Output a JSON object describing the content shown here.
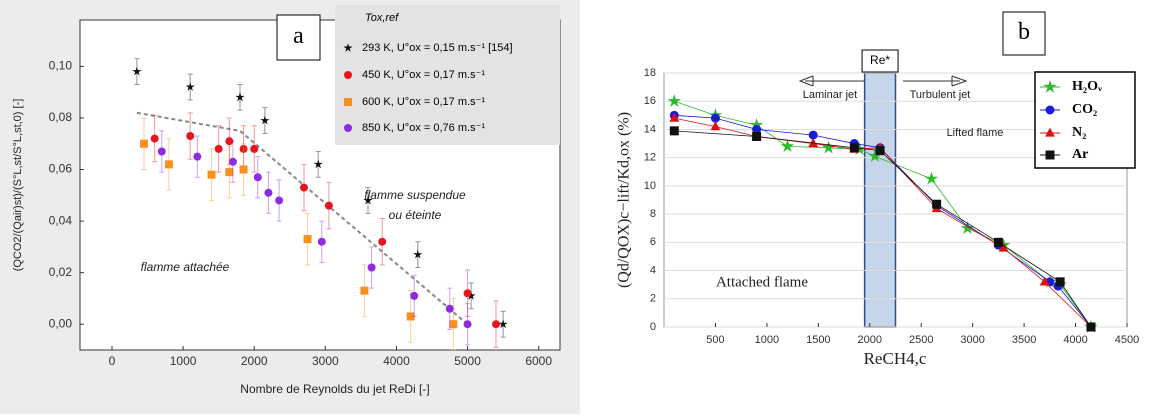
{
  "chart_data": [
    {
      "type": "scatter",
      "panel_label": "a",
      "y_label": "(QCO2/(Qair)st)/(S°L,st/S°L,st,0) [-]",
      "x_label": "Nombre de Reynolds du jet ReDi [-]",
      "legend_title": "Tox,ref",
      "annotations": [
        "flamme suspendue",
        "ou éteinte",
        "flamme attachée"
      ],
      "xlim": [
        -450,
        6300
      ],
      "ylim": [
        -0.01,
        0.118
      ],
      "xticks": [
        0,
        1000,
        2000,
        3000,
        4000,
        5000,
        6000
      ],
      "yticks": [
        {
          "value": 0,
          "label": "0,00"
        },
        {
          "value": 0.02,
          "label": "0,02"
        },
        {
          "value": 0.04,
          "label": "0,04"
        },
        {
          "value": 0.06,
          "label": "0,06"
        },
        {
          "value": 0.08,
          "label": "0,08"
        },
        {
          "value": 0.1,
          "label": "0,10"
        }
      ],
      "grid": false,
      "fit": {
        "x": [
          350,
          1800,
          5000
        ],
        "values": [
          0.082,
          0.075,
          0
        ],
        "color": "#888888"
      },
      "series": [
        {
          "name": "293 K, U°ox = 0,15 m.s⁻¹ [154]",
          "color": "#111111",
          "marker": "star",
          "x": [
            350,
            1100,
            1800,
            2150,
            2900,
            3600,
            4300,
            5050,
            5500
          ],
          "values": [
            0.098,
            0.092,
            0.088,
            0.079,
            0.062,
            0.048,
            0.027,
            0.011,
            0.0
          ],
          "error": 0.005
        },
        {
          "name": "450 K, U°ox = 0,17 m.s⁻¹",
          "color": "#e8141e",
          "marker": "circle",
          "x": [
            600,
            1100,
            1500,
            1650,
            1850,
            2000,
            2700,
            3050,
            3800,
            5000,
            5400
          ],
          "values": [
            0.072,
            0.073,
            0.068,
            0.071,
            0.068,
            0.068,
            0.053,
            0.046,
            0.032,
            0.012,
            0.0
          ],
          "error": 0.009
        },
        {
          "name": "600 K, U°ox = 0,17 m.s⁻¹",
          "color": "#f7901e",
          "marker": "square",
          "x": [
            450,
            800,
            1400,
            1650,
            1850,
            2750,
            3550,
            4200,
            4800
          ],
          "values": [
            0.07,
            0.062,
            0.058,
            0.059,
            0.06,
            0.033,
            0.013,
            0.003,
            0.0
          ],
          "error": 0.01
        },
        {
          "name": "850 K, U°ox = 0,76 m.s⁻¹",
          "color": "#8c2be2",
          "marker": "circle",
          "x": [
            700,
            1200,
            1700,
            2050,
            2200,
            2350,
            2950,
            3650,
            4250,
            4750,
            5000
          ],
          "values": [
            0.067,
            0.065,
            0.063,
            0.057,
            0.051,
            0.048,
            0.032,
            0.022,
            0.011,
            0.006,
            0.0
          ],
          "error": 0.008
        }
      ]
    },
    {
      "type": "line",
      "panel_label": "b",
      "y_label": "(Qd/QOX)c−lift/Kd,ox (%)",
      "x_label": "ReCH4,c",
      "region_label": "Re*",
      "band": [
        1950,
        2250
      ],
      "annotations": [
        "Laminar  jet",
        "Turbulent jet",
        "Lifted flame",
        "Attached flame"
      ],
      "xlim": [
        0,
        4500
      ],
      "ylim": [
        0,
        18
      ],
      "xticks": [
        500,
        1000,
        1500,
        2000,
        2500,
        3000,
        3500,
        4000,
        4500
      ],
      "yticks": [
        0,
        2,
        4,
        6,
        8,
        10,
        12,
        14,
        16,
        18
      ],
      "grid": true,
      "series": [
        {
          "name": "H₂Oᵥ",
          "color": "#2eb82e",
          "marker": "star",
          "x": [
            100,
            500,
            900,
            1200,
            1600,
            1900,
            2050,
            2600,
            2950,
            3300,
            3750,
            3850,
            4150
          ],
          "values": [
            16.0,
            15.0,
            14.3,
            12.8,
            12.7,
            12.6,
            12.1,
            10.5,
            7.0,
            5.8,
            3.2,
            3.0,
            0.0
          ]
        },
        {
          "name": "CO₂",
          "color": "#1a1adb",
          "marker": "circle",
          "x": [
            100,
            500,
            900,
            1450,
            1850,
            2100,
            2650,
            3250,
            3750,
            3830,
            4150
          ],
          "values": [
            15.0,
            14.8,
            14.0,
            13.6,
            13.0,
            12.7,
            8.6,
            5.8,
            3.2,
            2.9,
            0.0
          ]
        },
        {
          "name": "N₂",
          "color": "#e01010",
          "marker": "triangle",
          "x": [
            100,
            500,
            900,
            1450,
            1850,
            2100,
            2650,
            3300,
            3700,
            4150
          ],
          "values": [
            14.8,
            14.2,
            13.5,
            13.0,
            12.6,
            12.7,
            8.4,
            5.6,
            3.2,
            0.0
          ]
        },
        {
          "name": "Ar",
          "color": "#111111",
          "marker": "square",
          "x": [
            100,
            900,
            1850,
            2100,
            2650,
            3250,
            3850,
            4150
          ],
          "values": [
            13.9,
            13.5,
            12.7,
            12.5,
            8.7,
            6.0,
            3.2,
            0.0
          ]
        }
      ]
    }
  ]
}
